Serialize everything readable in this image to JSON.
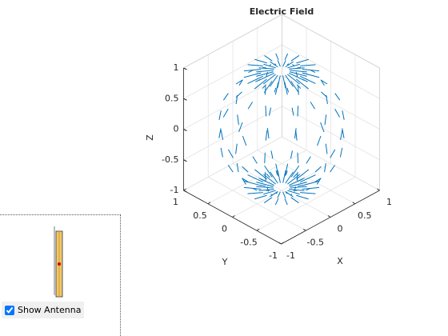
{
  "chart_data": {
    "type": "quiver3",
    "title": "Electric Field",
    "xlabel": "X",
    "ylabel": "Y",
    "zlabel": "Z",
    "xlim": [
      -1,
      1
    ],
    "ylim": [
      -1,
      1
    ],
    "zlim": [
      -1,
      1
    ],
    "xticks": [
      -1,
      -0.5,
      0,
      0.5,
      1
    ],
    "yticks": [
      -1,
      -0.5,
      0,
      0.5,
      1
    ],
    "zticks": [
      -1,
      -0.5,
      0,
      0.5,
      1
    ],
    "grid": true,
    "color": "#0072bd"
  },
  "controls": {
    "show_antenna": {
      "label": "Show Antenna",
      "checked": true
    }
  }
}
